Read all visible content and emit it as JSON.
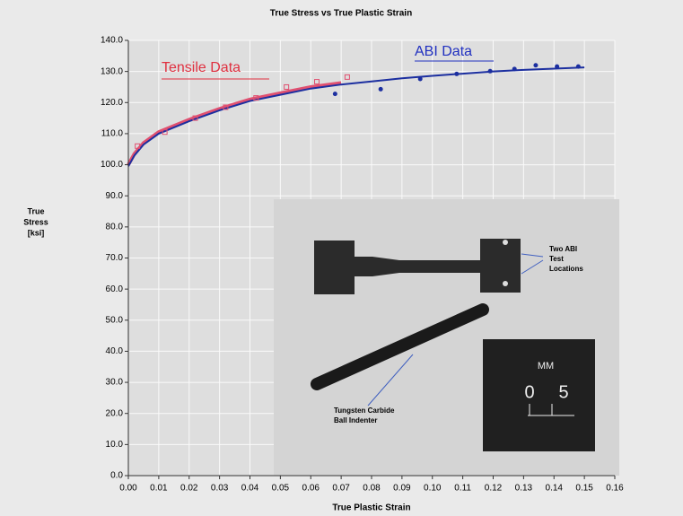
{
  "chart_data": {
    "type": "scatter",
    "title": "True Stress vs True Plastic Strain",
    "xlabel": "True Plastic Strain",
    "ylabel": [
      "True",
      "Stress",
      "[ksi]"
    ],
    "xlim": [
      0,
      0.16
    ],
    "ylim": [
      0,
      140
    ],
    "xticks": [
      {
        "value": 0,
        "label": "0.00"
      },
      {
        "value": 0.01,
        "label": "0.01"
      },
      {
        "value": 0.02,
        "label": "0.02"
      },
      {
        "value": 0.03,
        "label": "0.03"
      },
      {
        "value": 0.04,
        "label": "0.04"
      },
      {
        "value": 0.05,
        "label": "0.05"
      },
      {
        "value": 0.06,
        "label": "0.06"
      },
      {
        "value": 0.07,
        "label": "0.07"
      },
      {
        "value": 0.08,
        "label": "0.08"
      },
      {
        "value": 0.09,
        "label": "0.09"
      },
      {
        "value": 0.1,
        "label": "0.10"
      },
      {
        "value": 0.11,
        "label": "0.11"
      },
      {
        "value": 0.12,
        "label": "0.12"
      },
      {
        "value": 0.13,
        "label": "0.13"
      },
      {
        "value": 0.14,
        "label": "0.14"
      },
      {
        "value": 0.15,
        "label": "0.15"
      },
      {
        "value": 0.16,
        "label": "0.16"
      }
    ],
    "yticks": [
      {
        "value": 0,
        "label": "0.0"
      },
      {
        "value": 10,
        "label": "10.0"
      },
      {
        "value": 20,
        "label": "20.0"
      },
      {
        "value": 30,
        "label": "30.0"
      },
      {
        "value": 40,
        "label": "40.0"
      },
      {
        "value": 50,
        "label": "50.0"
      },
      {
        "value": 60,
        "label": "60.0"
      },
      {
        "value": 70,
        "label": "70.0"
      },
      {
        "value": 80,
        "label": "80.0"
      },
      {
        "value": 90,
        "label": "90.0"
      },
      {
        "value": 100,
        "label": "100.0"
      },
      {
        "value": 110,
        "label": "110.0"
      },
      {
        "value": 120,
        "label": "120.0"
      },
      {
        "value": 130,
        "label": "130.0"
      },
      {
        "value": 140,
        "label": "140.0"
      }
    ],
    "grid": true,
    "series": [
      {
        "name": "Tensile Data",
        "color": "#e05070",
        "marker": "square",
        "x": [
          0.003,
          0.012,
          0.022,
          0.032,
          0.042,
          0.052,
          0.062,
          0.072
        ],
        "values": [
          106,
          110.5,
          115,
          118.5,
          121.5,
          125,
          126.7,
          128.2
        ]
      },
      {
        "name": "ABI Data",
        "color": "#1c2fa0",
        "marker": "circle",
        "x": [
          0.068,
          0.083,
          0.096,
          0.108,
          0.119,
          0.127,
          0.134,
          0.141,
          0.148
        ],
        "values": [
          122.8,
          124.3,
          127.6,
          129.2,
          130.1,
          130.8,
          132,
          131.6,
          131.6
        ]
      },
      {
        "color": "#e05070",
        "marker": "line",
        "x": [
          0,
          0.002,
          0.005,
          0.01,
          0.02,
          0.03,
          0.04,
          0.05,
          0.06,
          0.07
        ],
        "values": [
          100,
          103.5,
          107,
          110.5,
          114.5,
          118,
          121,
          123,
          125,
          126.3
        ]
      },
      {
        "color": "#1c2fa0",
        "marker": "line",
        "x": [
          0,
          0.002,
          0.005,
          0.01,
          0.02,
          0.03,
          0.04,
          0.05,
          0.06,
          0.07,
          0.08,
          0.09,
          0.1,
          0.11,
          0.12,
          0.13,
          0.14,
          0.15
        ],
        "values": [
          99.5,
          103,
          106.5,
          110,
          114,
          117.5,
          120.5,
          122.5,
          124.5,
          125.8,
          126.8,
          127.8,
          128.6,
          129.3,
          130,
          130.5,
          130.9,
          131.3
        ]
      }
    ],
    "photo_labels": {
      "locations": [
        "Two ABI",
        "Test",
        "Locations"
      ],
      "indenter": [
        "Tungsten Carbide",
        "Ball Indenter"
      ],
      "scale": [
        "MM",
        "0",
        "5"
      ]
    }
  }
}
